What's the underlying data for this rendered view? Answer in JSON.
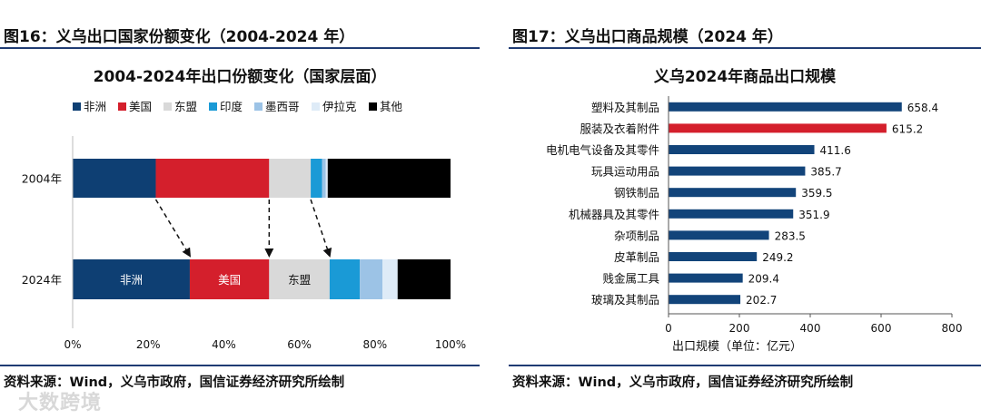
{
  "left": {
    "figure_title": "图16：义乌出口国家份额变化（2004-2024 年）",
    "source": "资料来源：Wind，义乌市政府，国信证券经济研究所绘制"
  },
  "right": {
    "figure_title": "图17：义乌出口商品规模（2024 年）",
    "source": "资料来源：Wind，义乌市政府，国信证券经济研究所绘制"
  },
  "watermark": "大数跨境",
  "colors": {
    "rule": "#1f3b73",
    "非洲": "#0e3f73",
    "美国": "#d41f2c",
    "东盟": "#d9d9d9",
    "印度": "#1a9ad6",
    "墨西哥": "#9cc3e6",
    "伊拉克": "#deebf7",
    "其他": "#000000",
    "bar_red": "#d41f2c",
    "bar_blue": "#12447a"
  },
  "chart_data": [
    {
      "type": "bar",
      "orientation": "horizontal-stacked-100",
      "title": "2004-2024年出口份额变化（国家层面）",
      "categories": [
        "2004年",
        "2024年"
      ],
      "series": [
        {
          "name": "非洲",
          "values": [
            22,
            31
          ]
        },
        {
          "name": "美国",
          "values": [
            30,
            21
          ]
        },
        {
          "name": "东盟",
          "values": [
            11,
            16
          ]
        },
        {
          "name": "印度",
          "values": [
            3,
            8
          ]
        },
        {
          "name": "墨西哥",
          "values": [
            1,
            6
          ]
        },
        {
          "name": "伊拉克",
          "values": [
            0.5,
            4
          ]
        },
        {
          "name": "其他",
          "values": [
            32.5,
            14
          ]
        }
      ],
      "segment_labels": {
        "2024年": [
          "非洲",
          "美国",
          "东盟"
        ]
      },
      "xlim": [
        0,
        100
      ],
      "xticks": [
        "0%",
        "20%",
        "40%",
        "60%",
        "80%",
        "100%"
      ],
      "legend_position": "top",
      "annotations": "dashed arrows from 2004 segment boundaries to 2024 segment boundaries"
    },
    {
      "type": "bar",
      "orientation": "horizontal",
      "title": "义乌2024年商品出口规模",
      "xlabel": "出口规模（单位：亿元）",
      "categories": [
        "塑料及其制品",
        "服装及衣着附件",
        "电机电气设备及其零件",
        "玩具运动用品",
        "钢铁制品",
        "机械器具及其零件",
        "杂项制品",
        "皮革制品",
        "贱金属工具",
        "玻璃及其制品"
      ],
      "values": [
        658.4,
        615.2,
        411.6,
        385.7,
        359.5,
        351.9,
        283.5,
        249.2,
        209.4,
        202.7
      ],
      "value_labels": [
        "658.4",
        "615.2",
        "411.6",
        "385.7",
        "359.5",
        "351.9",
        "283.5",
        "249.2",
        "209.4",
        "202.7"
      ],
      "highlight_index": 1,
      "xlim": [
        0,
        800
      ],
      "xticks": [
        "0",
        "200",
        "400",
        "600",
        "800"
      ],
      "grid": false
    }
  ]
}
